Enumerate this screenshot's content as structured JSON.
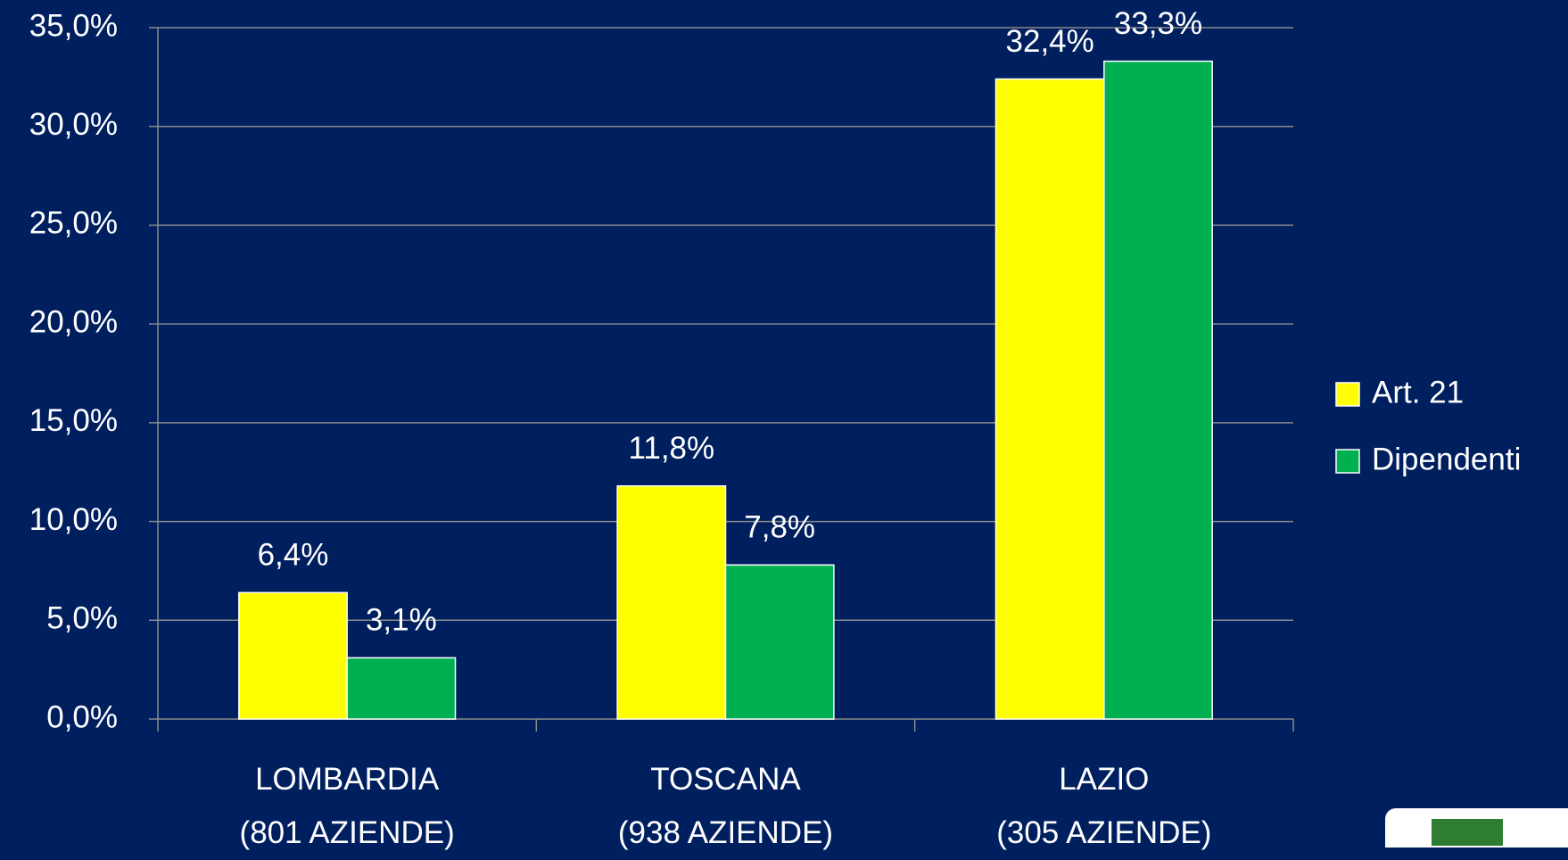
{
  "chart_data": {
    "type": "bar",
    "categories": [
      "LOMBARDIA\n(801 AZIENDE)",
      "TOSCANA\n(938 AZIENDE)",
      "LAZIO\n(305 AZIENDE)"
    ],
    "series": [
      {
        "name": "Art. 21",
        "color": "#ffff00",
        "values": [
          6.4,
          11.8,
          32.4
        ],
        "value_labels": [
          "6,4%",
          "11,8%",
          "32,4%"
        ]
      },
      {
        "name": "Dipendenti",
        "color": "#00b050",
        "values": [
          3.1,
          7.8,
          33.3
        ],
        "value_labels": [
          "3,1%",
          "7,8%",
          "33,3%"
        ]
      }
    ],
    "ylim": [
      0,
      35
    ],
    "yticks": [
      {
        "value": 0,
        "label": "0,0%"
      },
      {
        "value": 5,
        "label": "5,0%"
      },
      {
        "value": 10,
        "label": "10,0%"
      },
      {
        "value": 15,
        "label": "15,0%"
      },
      {
        "value": 20,
        "label": "20,0%"
      },
      {
        "value": 25,
        "label": "25,0%"
      },
      {
        "value": 30,
        "label": "30,0%"
      },
      {
        "value": 35,
        "label": "35,0%"
      }
    ],
    "grid": true,
    "legend": "right"
  }
}
